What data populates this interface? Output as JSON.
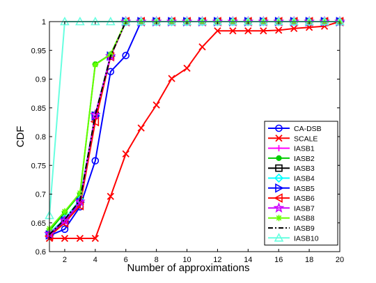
{
  "chart_data": {
    "type": "line",
    "xlabel": "Number of approximations",
    "ylabel": "CDF",
    "xlim": [
      1,
      20
    ],
    "ylim": [
      0.6,
      1.0
    ],
    "xticks": [
      2,
      4,
      6,
      8,
      10,
      12,
      14,
      16,
      18,
      20
    ],
    "yticks": [
      0.6,
      0.65,
      0.7,
      0.75,
      0.8,
      0.85,
      0.9,
      0.95,
      1
    ],
    "ytick_labels": [
      "0.6",
      "0.65",
      "0.7",
      "0.75",
      "0.8",
      "0.85",
      "0.9",
      "0.95",
      "1"
    ],
    "grid": false,
    "legend_position": "bottom-right",
    "x": [
      1,
      2,
      3,
      4,
      5,
      6,
      7,
      8,
      9,
      10,
      11,
      12,
      13,
      14,
      15,
      16,
      17,
      18,
      19,
      20
    ],
    "series": [
      {
        "name": "CA-DSB",
        "color": "#0000ff",
        "marker": "circle",
        "dash": "solid",
        "values": [
          0.628,
          0.639,
          0.678,
          0.758,
          0.913,
          0.941,
          1,
          1,
          1,
          1,
          1,
          1,
          1,
          1,
          1,
          1,
          1,
          1,
          1,
          1
        ]
      },
      {
        "name": "SCALE",
        "color": "#ff0000",
        "marker": "x",
        "dash": "solid",
        "values": [
          0.623,
          0.623,
          0.623,
          0.623,
          0.696,
          0.77,
          0.815,
          0.855,
          0.901,
          0.919,
          0.956,
          0.984,
          0.984,
          0.984,
          0.984,
          0.985,
          0.988,
          0.99,
          0.992,
          1.0
        ]
      },
      {
        "name": "IASB1",
        "color": "#ff00ff",
        "marker": "plus",
        "dash": "solid",
        "values": [
          0.634,
          0.652,
          0.684,
          0.833,
          0.94,
          1,
          1,
          1,
          1,
          1,
          1,
          1,
          1,
          1,
          1,
          1,
          1,
          1,
          1,
          1
        ]
      },
      {
        "name": "IASB2",
        "color": "#00cc00",
        "marker": "dot",
        "dash": "solid",
        "values": [
          0.636,
          0.668,
          0.7,
          0.926,
          0.943,
          1,
          1,
          1,
          1,
          1,
          1,
          1,
          1,
          1,
          1,
          1,
          1,
          1,
          1,
          1
        ]
      },
      {
        "name": "IASB3",
        "color": "#000000",
        "marker": "square",
        "dash": "solid",
        "values": [
          0.63,
          0.655,
          0.688,
          0.837,
          0.94,
          1,
          1,
          1,
          1,
          1,
          1,
          1,
          1,
          1,
          1,
          1,
          1,
          1,
          1,
          1
        ]
      },
      {
        "name": "IASB4",
        "color": "#00ffff",
        "marker": "diamond",
        "dash": "solid",
        "values": [
          0.632,
          0.657,
          0.69,
          0.838,
          0.941,
          1,
          1,
          1,
          1,
          1,
          1,
          1,
          1,
          1,
          1,
          1,
          1,
          1,
          1,
          1
        ]
      },
      {
        "name": "IASB5",
        "color": "#0000ff",
        "marker": "triangle-right",
        "dash": "solid",
        "values": [
          0.629,
          0.653,
          0.686,
          0.836,
          0.94,
          1,
          1,
          1,
          1,
          1,
          1,
          1,
          1,
          1,
          1,
          1,
          1,
          1,
          1,
          1
        ]
      },
      {
        "name": "IASB6",
        "color": "#ff0000",
        "marker": "triangle-left",
        "dash": "solid",
        "values": [
          0.627,
          0.65,
          0.68,
          0.826,
          0.939,
          1,
          1,
          1,
          1,
          1,
          1,
          1,
          1,
          1,
          1,
          1,
          1,
          1,
          1,
          1
        ]
      },
      {
        "name": "IASB7",
        "color": "#cc00ff",
        "marker": "star",
        "dash": "solid",
        "values": [
          0.631,
          0.654,
          0.687,
          0.838,
          0.94,
          1,
          1,
          1,
          1,
          1,
          1,
          1,
          1,
          1,
          1,
          1,
          1,
          1,
          1,
          1
        ]
      },
      {
        "name": "IASB8",
        "color": "#66ff00",
        "marker": "asterisk",
        "dash": "solid",
        "values": [
          0.64,
          0.67,
          0.702,
          0.925,
          0.943,
          1,
          1,
          1,
          1,
          1,
          1,
          1,
          1,
          1,
          1,
          1,
          1,
          1,
          1,
          1
        ]
      },
      {
        "name": "IASB9",
        "color": "#000000",
        "marker": "none",
        "dash": "dashdot",
        "values": [
          0.63,
          0.656,
          0.689,
          0.838,
          0.94,
          1,
          1,
          1,
          1,
          1,
          1,
          1,
          1,
          1,
          1,
          1,
          1,
          1,
          1,
          1
        ]
      },
      {
        "name": "IASB10",
        "color": "#66ffe0",
        "marker": "triangle-up",
        "dash": "solid",
        "values": [
          0.663,
          1,
          1,
          1,
          1,
          1,
          1,
          1,
          1,
          1,
          1,
          1,
          1,
          1,
          1,
          1,
          1,
          1,
          1,
          1
        ]
      }
    ]
  }
}
